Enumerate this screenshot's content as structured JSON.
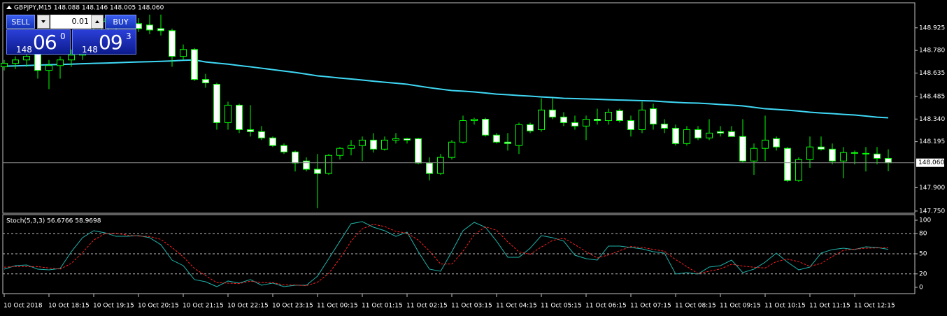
{
  "chart_data": [
    {
      "type": "candlestick",
      "title": "GBPJPY,M15  148.088 148.146 148.005 148.060",
      "categories": [
        "10 Oct 2018",
        null,
        null,
        null,
        "10 Oct 18:15",
        null,
        null,
        null,
        "10 Oct 19:15",
        null,
        null,
        null,
        "10 Oct 20:15",
        null,
        null,
        null,
        "10 Oct 21:15",
        null,
        null,
        null,
        "10 Oct 22:15",
        null,
        null,
        null,
        "10 Oct 23:15",
        null,
        null,
        null,
        "11 Oct 00:15",
        null,
        null,
        null,
        "11 Oct 01:15",
        null,
        null,
        null,
        "11 Oct 02:15",
        null,
        null,
        null,
        "11 Oct 03:15",
        null,
        null,
        null,
        "11 Oct 04:15",
        null,
        null,
        null,
        "11 Oct 05:15",
        null,
        null,
        null,
        "11 Oct 06:15",
        null,
        null,
        null,
        "11 Oct 07:15",
        null,
        null,
        null,
        "11 Oct 08:15",
        null,
        null,
        null,
        "11 Oct 09:15",
        null,
        null,
        null,
        "11 Oct 10:15",
        null,
        null,
        null,
        "11 Oct 11:15",
        null,
        null,
        null,
        "11 Oct 12:15",
        null,
        null,
        null
      ],
      "open": [
        148.675,
        148.697,
        148.719,
        148.764,
        148.652,
        148.683,
        148.719,
        148.75,
        148.809,
        148.898,
        148.943,
        148.965,
        148.952,
        148.943,
        148.92,
        148.907,
        148.742,
        148.786,
        148.594,
        148.563,
        148.317,
        148.429,
        148.272,
        148.259,
        148.219,
        148.17,
        148.129,
        148.071,
        148.018,
        147.991,
        148.107,
        148.152,
        148.17,
        148.205,
        148.147,
        148.205,
        148.214,
        148.214,
        148.058,
        147.991,
        148.094,
        148.192,
        148.33,
        148.339,
        148.237,
        148.192,
        148.17,
        148.304,
        148.272,
        148.398,
        148.353,
        148.317,
        148.295,
        148.339,
        148.33,
        148.393,
        148.33,
        148.272,
        148.406,
        148.308,
        148.281,
        148.183,
        148.272,
        148.219,
        148.259,
        148.259,
        148.228,
        148.071,
        148.152,
        148.214,
        148.152,
        147.946,
        148.08,
        148.161,
        148.147,
        148.071,
        148.125,
        148.12,
        148.116,
        148.088
      ],
      "high": [
        148.719,
        148.742,
        148.764,
        148.809,
        148.719,
        148.742,
        148.786,
        148.831,
        148.92,
        148.987,
        148.987,
        149.001,
        148.987,
        149.01,
        149.01,
        148.92,
        148.818,
        148.795,
        148.63,
        148.572,
        148.451,
        148.438,
        148.429,
        148.295,
        148.228,
        148.183,
        148.138,
        148.094,
        148.116,
        148.116,
        148.161,
        148.205,
        148.228,
        148.25,
        148.228,
        148.25,
        148.219,
        148.219,
        148.094,
        148.116,
        148.205,
        148.362,
        148.348,
        148.348,
        148.25,
        148.25,
        148.317,
        148.317,
        148.473,
        148.473,
        148.384,
        148.362,
        148.362,
        148.406,
        148.406,
        148.406,
        148.362,
        148.451,
        148.438,
        148.339,
        148.304,
        148.295,
        148.295,
        148.339,
        148.295,
        148.295,
        148.339,
        148.183,
        148.362,
        148.228,
        148.161,
        148.094,
        148.228,
        148.228,
        148.183,
        148.161,
        148.138,
        148.161,
        148.161,
        148.146
      ],
      "low": [
        148.652,
        148.661,
        148.675,
        148.599,
        148.532,
        148.599,
        148.675,
        148.719,
        148.786,
        148.876,
        148.898,
        148.92,
        148.898,
        148.885,
        148.876,
        148.675,
        148.719,
        148.585,
        148.541,
        148.272,
        148.272,
        148.25,
        148.228,
        148.205,
        148.161,
        148.116,
        148.004,
        148.004,
        147.768,
        147.982,
        148.08,
        148.107,
        148.071,
        148.125,
        148.138,
        148.183,
        148.183,
        148.049,
        147.946,
        147.982,
        148.08,
        148.183,
        148.304,
        148.228,
        148.183,
        148.138,
        148.116,
        148.25,
        148.259,
        148.339,
        148.295,
        148.272,
        148.205,
        148.304,
        148.304,
        148.317,
        148.228,
        148.25,
        148.272,
        148.25,
        148.17,
        148.17,
        148.205,
        148.205,
        148.228,
        148.228,
        148.062,
        147.982,
        148.071,
        148.138,
        147.937,
        147.937,
        148.027,
        148.138,
        148.049,
        147.96,
        148.049,
        148.004,
        148.049,
        148.005
      ],
      "close": [
        148.697,
        148.719,
        148.742,
        148.652,
        148.683,
        148.719,
        148.75,
        148.809,
        148.898,
        148.965,
        148.965,
        148.952,
        148.92,
        148.911,
        148.907,
        148.742,
        148.786,
        148.594,
        148.572,
        148.317,
        148.429,
        148.272,
        148.259,
        148.219,
        148.17,
        148.129,
        148.058,
        148.018,
        147.991,
        148.107,
        148.152,
        148.17,
        148.205,
        148.147,
        148.205,
        148.214,
        148.205,
        148.058,
        147.991,
        148.094,
        148.192,
        148.33,
        148.339,
        148.237,
        148.192,
        148.183,
        148.304,
        148.264,
        148.398,
        148.353,
        148.317,
        148.295,
        148.339,
        148.33,
        148.384,
        148.33,
        148.272,
        148.398,
        148.308,
        148.281,
        148.183,
        148.272,
        148.219,
        148.25,
        148.25,
        148.228,
        148.071,
        148.152,
        148.205,
        148.161,
        147.946,
        148.08,
        148.161,
        148.147,
        148.071,
        148.125,
        148.12,
        148.116,
        148.088,
        148.06
      ],
      "up_color": "#000000",
      "down_color": "#ffffff",
      "wick_color": "#00ff00",
      "ma": {
        "color": "#3fd8f5",
        "values": [
          148.679,
          148.681,
          148.683,
          148.686,
          148.688,
          148.69,
          148.692,
          148.695,
          148.697,
          148.699,
          148.701,
          148.704,
          148.706,
          148.708,
          148.71,
          148.713,
          148.717,
          148.719,
          148.706,
          148.699,
          148.692,
          148.683,
          148.675,
          148.666,
          148.657,
          148.648,
          148.639,
          148.628,
          148.617,
          148.61,
          148.603,
          148.597,
          148.59,
          148.583,
          148.576,
          148.57,
          148.563,
          148.552,
          148.541,
          148.532,
          148.523,
          148.519,
          148.514,
          148.507,
          148.5,
          148.496,
          148.491,
          148.487,
          148.482,
          148.478,
          148.473,
          148.471,
          148.469,
          148.467,
          148.464,
          148.462,
          148.46,
          148.458,
          148.456,
          148.451,
          148.447,
          148.444,
          148.442,
          148.438,
          148.433,
          148.429,
          148.424,
          148.415,
          148.406,
          148.402,
          148.397,
          148.391,
          148.384,
          148.379,
          148.375,
          148.37,
          148.366,
          148.359,
          148.352,
          148.348
        ]
      },
      "ylim": [
        147.736,
        149.081
      ],
      "yticks": [
        148.925,
        {
          "value": 148.78,
          "label": "148.780"
        },
        148.635,
        148.485,
        {
          "value": 148.34,
          "label": "148.340"
        },
        148.195,
        {
          "value": 147.9,
          "label": "147.900"
        },
        {
          "value": 147.75,
          "label": "147.750"
        }
      ],
      "current_price": {
        "value": 148.06,
        "label": "148.060"
      }
    },
    {
      "type": "line",
      "title": "Stoch(5,3,3) 56.6766 58.9698",
      "series": [
        {
          "color": "#20b2aa",
          "style": "solid",
          "values": [
            27.1,
            32.3,
            33.3,
            27.1,
            26.0,
            28.1,
            53.1,
            74.0,
            84.4,
            81.3,
            76.0,
            76.0,
            77.1,
            74.0,
            63.5,
            40.6,
            32.3,
            11.5,
            8.3,
            1.0,
            9.4,
            6.3,
            11.5,
            3.1,
            6.3,
            1.0,
            3.1,
            3.1,
            16.7,
            42.7,
            68.8,
            94.8,
            97.9,
            89.6,
            84.4,
            76.0,
            82.3,
            53.1,
            27.1,
            24.0,
            53.1,
            84.4,
            96.9,
            89.6,
            68.8,
            44.8,
            44.8,
            58.3,
            77.1,
            74.0,
            68.8,
            47.9,
            42.7,
            40.6,
            61.5,
            61.5,
            59.4,
            57.3,
            53.1,
            51.0,
            19.8,
            21.9,
            19.8,
            30.2,
            32.3,
            40.6,
            21.9,
            27.1,
            37.5,
            51.0,
            37.5,
            26.0,
            30.2,
            51.0,
            56.3,
            58.3,
            56.3,
            60.4,
            59.4,
            56.6766
          ]
        },
        {
          "color": "#ff2020",
          "style": "dashed",
          "values": [
            30.0,
            31.0,
            30.9,
            30.9,
            28.8,
            27.1,
            35.7,
            51.7,
            70.5,
            79.9,
            80.6,
            77.8,
            76.4,
            75.7,
            71.5,
            59.4,
            45.5,
            28.1,
            17.4,
            6.9,
            6.2,
            5.6,
            9.1,
            7.0,
            7.0,
            3.5,
            3.5,
            2.4,
            7.6,
            20.8,
            42.7,
            68.8,
            87.2,
            94.1,
            90.6,
            83.3,
            80.9,
            70.5,
            54.2,
            34.7,
            34.7,
            53.8,
            78.1,
            90.3,
            85.1,
            67.7,
            52.8,
            49.3,
            60.1,
            69.8,
            73.3,
            63.6,
            53.1,
            43.7,
            48.3,
            54.5,
            60.8,
            59.4,
            56.6,
            53.8,
            41.3,
            30.9,
            20.5,
            24.0,
            27.4,
            34.4,
            31.6,
            29.9,
            28.8,
            38.5,
            42.0,
            38.2,
            31.2,
            35.7,
            45.8,
            55.2,
            57.0,
            58.3,
            58.7,
            58.9698
          ]
        }
      ],
      "ylim": [
        -9.4,
        107.3
      ],
      "yticks": [
        100,
        80,
        50,
        20,
        0
      ],
      "levels": [
        80,
        50,
        20
      ]
    }
  ],
  "trade_panel": {
    "sell": "SELL",
    "buy": "BUY",
    "lot": "0.01",
    "bid": {
      "big_figure": "148",
      "pips": "06",
      "fraction": "0"
    },
    "ask": {
      "big_figure": "148",
      "pips": "09",
      "fraction": "3"
    }
  }
}
